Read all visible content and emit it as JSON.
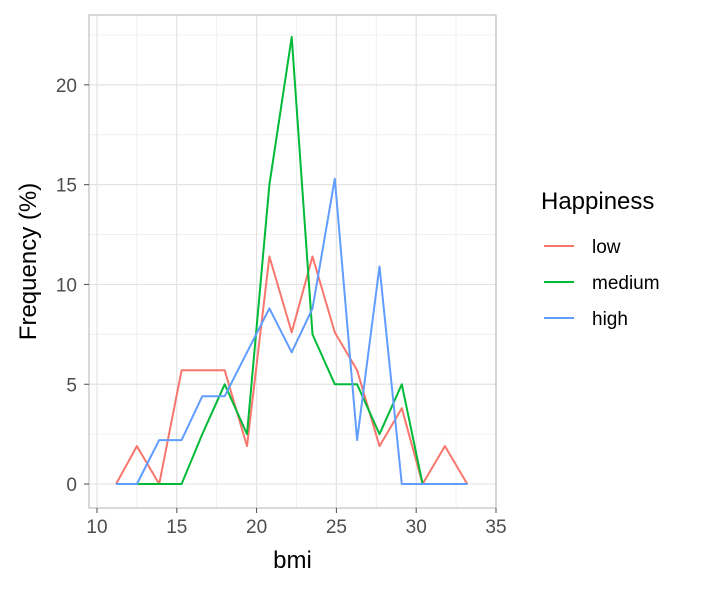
{
  "chart_data": {
    "type": "line",
    "xlabel": "bmi",
    "ylabel": "Frequency (%)",
    "xlim": [
      9.5,
      35
    ],
    "ylim": [
      -1.2,
      23.5
    ],
    "x_ticks": [
      10,
      15,
      20,
      25,
      30,
      35
    ],
    "y_ticks": [
      0,
      5,
      10,
      15,
      20
    ],
    "x_tick_labels": [
      "10",
      "15",
      "20",
      "25",
      "30",
      "35"
    ],
    "y_tick_labels": [
      "0",
      "5",
      "10",
      "15",
      "20"
    ],
    "grid": true,
    "legend": {
      "title": "Happiness",
      "position": "right"
    },
    "series": [
      {
        "name": "low",
        "color": "#F8766D",
        "x": [
          11.2,
          12.5,
          13.9,
          15.3,
          16.6,
          18.0,
          19.4,
          20.8,
          22.2,
          23.5,
          24.9,
          26.3,
          27.7,
          29.1,
          30.4,
          31.8,
          33.2
        ],
        "y": [
          0.0,
          1.9,
          0.0,
          5.7,
          5.7,
          5.7,
          1.9,
          11.4,
          7.6,
          11.4,
          7.6,
          5.7,
          1.9,
          3.8,
          0.0,
          1.9,
          0.0
        ]
      },
      {
        "name": "medium",
        "color": "#00BA38",
        "x": [
          11.2,
          12.5,
          13.9,
          15.3,
          16.6,
          18.0,
          19.4,
          20.8,
          22.2,
          23.5,
          24.9,
          26.3,
          27.7,
          29.1,
          30.4,
          31.8,
          33.2
        ],
        "y": [
          0.0,
          0.0,
          0.0,
          0.0,
          2.5,
          5.0,
          2.5,
          15.0,
          22.4,
          7.5,
          5.0,
          5.0,
          2.5,
          5.0,
          0.0,
          0.0,
          0.0
        ]
      },
      {
        "name": "high",
        "color": "#619CFF",
        "x": [
          11.2,
          12.5,
          13.9,
          15.3,
          16.6,
          18.0,
          19.4,
          20.8,
          22.2,
          23.5,
          24.9,
          26.3,
          27.7,
          29.1,
          30.4,
          31.8,
          33.2
        ],
        "y": [
          0.0,
          0.0,
          2.2,
          2.2,
          4.4,
          4.4,
          6.6,
          8.8,
          6.6,
          8.8,
          15.3,
          2.2,
          10.9,
          0.0,
          0.0,
          0.0,
          0.0
        ]
      }
    ]
  }
}
